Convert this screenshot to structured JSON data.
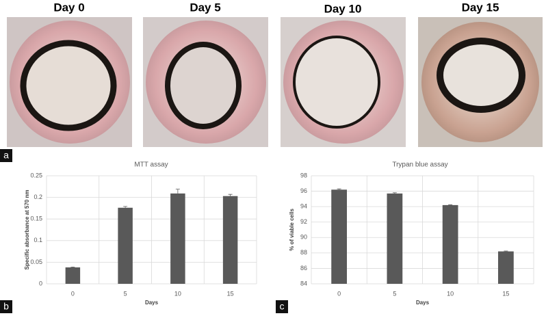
{
  "photos": {
    "labels": [
      "Day 0",
      "Day 5",
      "Day 10",
      "Day 15"
    ],
    "panel": "a"
  },
  "chart_data": [
    {
      "type": "bar",
      "panel": "b",
      "title": "MTT assay",
      "xlabel": "Days",
      "ylabel": "Specific absorbance at 570 nm",
      "categories": [
        "0",
        "5",
        "10",
        "15"
      ],
      "values": [
        0.038,
        0.176,
        0.209,
        0.203
      ],
      "errors": [
        0.001,
        0.003,
        0.01,
        0.004
      ],
      "color": "#595959",
      "ylim": [
        0,
        0.25
      ],
      "yticks": [
        0,
        0.05,
        0.1,
        0.15,
        0.2,
        0.25
      ],
      "grid": true
    },
    {
      "type": "bar",
      "panel": "c",
      "title": "Trypan blue assay",
      "xlabel": "Days",
      "ylabel": "% of viable cells",
      "categories": [
        "0",
        "5",
        "10",
        "15"
      ],
      "values": [
        96.2,
        95.7,
        94.2,
        88.2
      ],
      "errors": [
        0.1,
        0.1,
        0.05,
        0.05
      ],
      "color": "#595959",
      "ylim": [
        84,
        98
      ],
      "yticks": [
        84,
        86,
        88,
        90,
        92,
        94,
        96,
        98
      ],
      "grid": true
    }
  ]
}
